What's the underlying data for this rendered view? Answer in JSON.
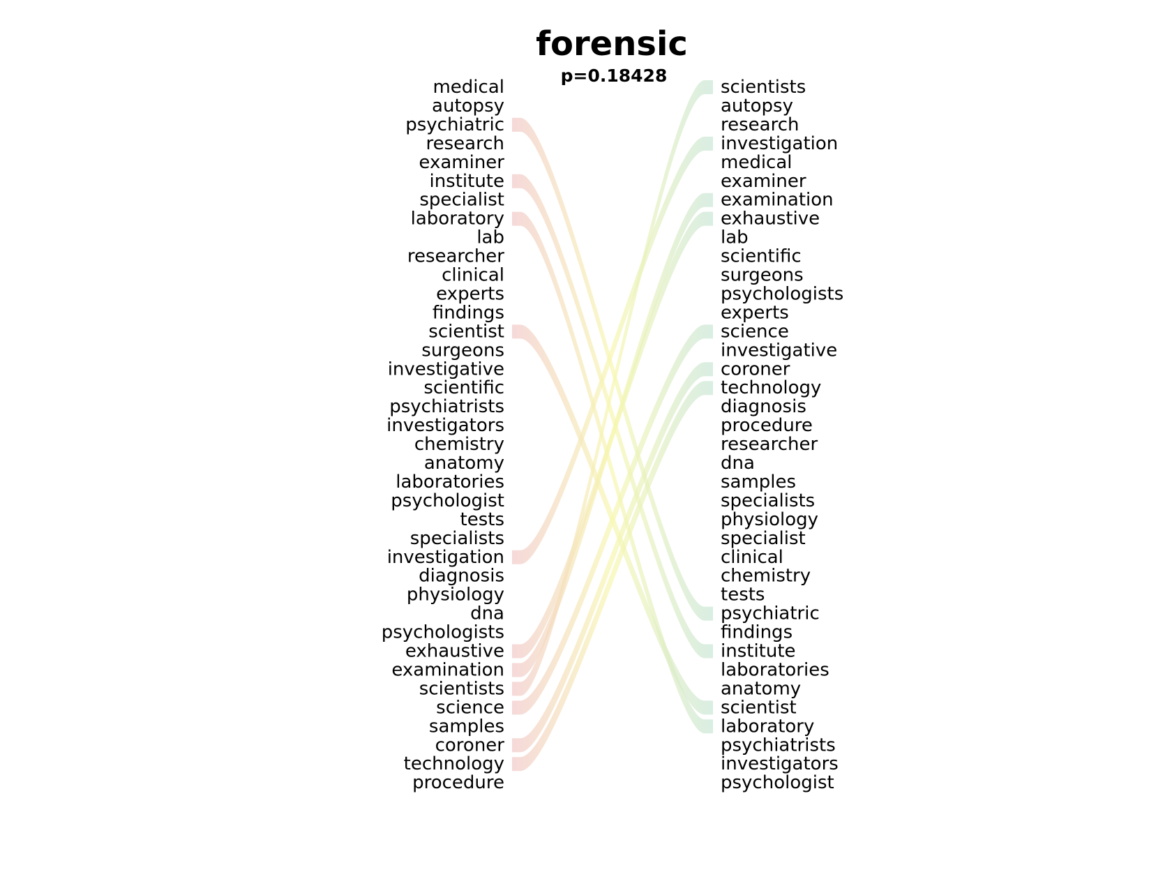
{
  "chart_data": {
    "type": "bump",
    "title": "forensic",
    "subtitle": "p=0.18428",
    "left_words": [
      "medical",
      "autopsy",
      "psychiatric",
      "research",
      "examiner",
      "institute",
      "specialist",
      "laboratory",
      "lab",
      "researcher",
      "clinical",
      "experts",
      "findings",
      "scientist",
      "surgeons",
      "investigative",
      "scientific",
      "psychiatrists",
      "investigators",
      "chemistry",
      "anatomy",
      "laboratories",
      "psychologist",
      "tests",
      "specialists",
      "investigation",
      "diagnosis",
      "physiology",
      "dna",
      "psychologists",
      "exhaustive",
      "examination",
      "scientists",
      "science",
      "samples",
      "coroner",
      "technology",
      "procedure"
    ],
    "right_words": [
      "scientists",
      "autopsy",
      "research",
      "investigation",
      "medical",
      "examiner",
      "examination",
      "exhaustive",
      "lab",
      "scientific",
      "surgeons",
      "psychologists",
      "experts",
      "science",
      "investigative",
      "coroner",
      "technology",
      "diagnosis",
      "procedure",
      "researcher",
      "dna",
      "samples",
      "specialists",
      "physiology",
      "specialist",
      "clinical",
      "chemistry",
      "tests",
      "psychiatric",
      "findings",
      "institute",
      "laboratories",
      "anatomy",
      "scientist",
      "laboratory",
      "psychiatrists",
      "investigators",
      "psychologist"
    ],
    "highlighted_links": [
      {
        "from": 2,
        "to": 28
      },
      {
        "from": 5,
        "to": 30
      },
      {
        "from": 7,
        "to": 34
      },
      {
        "from": 13,
        "to": 33
      },
      {
        "from": 25,
        "to": 3
      },
      {
        "from": 30,
        "to": 7
      },
      {
        "from": 31,
        "to": 6
      },
      {
        "from": 32,
        "to": 0
      },
      {
        "from": 33,
        "to": 13
      },
      {
        "from": 35,
        "to": 15
      },
      {
        "from": 36,
        "to": 16
      }
    ],
    "colors": {
      "left_band": "#f2c9c9",
      "mid_band": "#f7f7b0",
      "right_band": "#c9e6d6",
      "text": "#000000"
    }
  }
}
